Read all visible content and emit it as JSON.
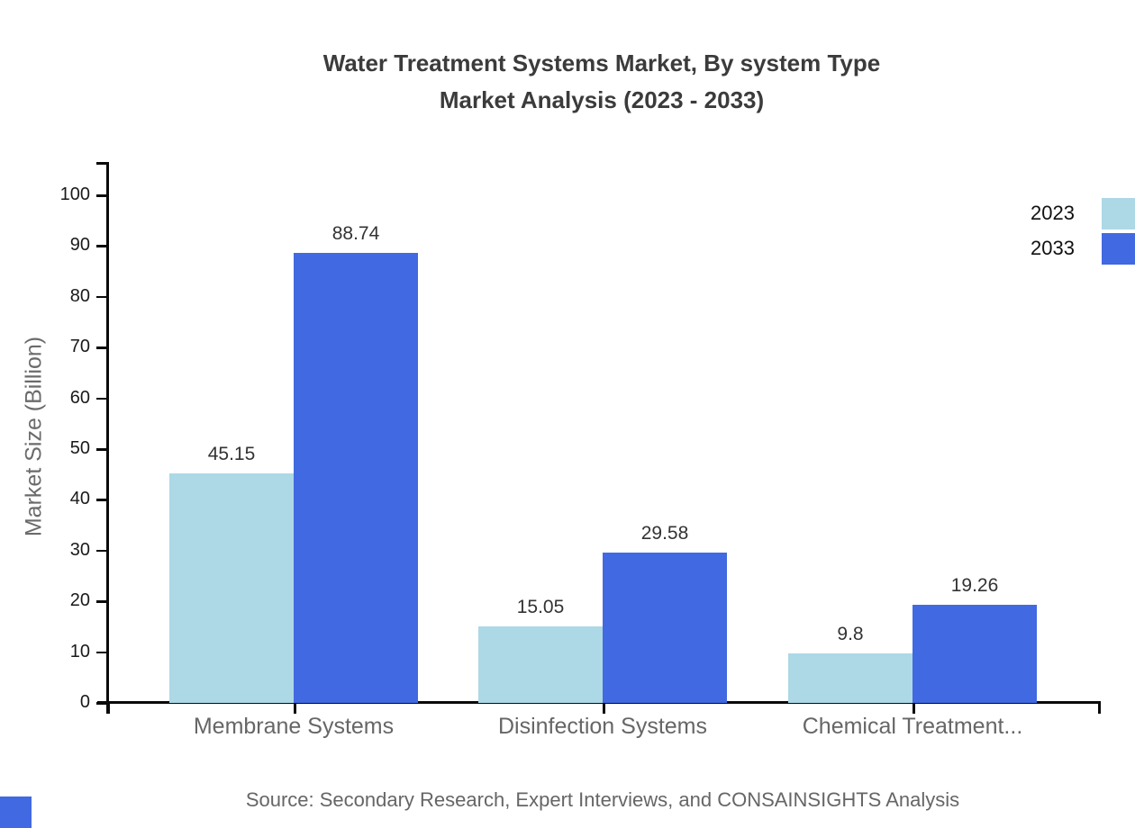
{
  "title": {
    "line1": "Water Treatment Systems Market, By system Type",
    "line2": "Market Analysis (2023 - 2033)"
  },
  "chart_data": {
    "type": "bar",
    "categories": [
      "Membrane Systems",
      "Disinfection Systems",
      "Chemical Treatment..."
    ],
    "series": [
      {
        "name": "2023",
        "color": "#ADD8E6",
        "values": [
          45.15,
          15.05,
          9.8
        ]
      },
      {
        "name": "2033",
        "color": "#4169E1",
        "values": [
          88.74,
          29.58,
          19.26
        ]
      }
    ],
    "value_labels": [
      "45.15",
      "88.74",
      "15.05",
      "29.58",
      "9.8",
      "19.26"
    ],
    "title": "Water Treatment Systems Market, By system Type Market Analysis (2023 - 2033)",
    "xlabel": "",
    "ylabel": "Market Size (Billion)",
    "ylim": [
      0,
      100
    ],
    "yticks": [
      0,
      10,
      20,
      30,
      40,
      50,
      60,
      70,
      80,
      90,
      100
    ],
    "grid": false,
    "legend_position": "top-right"
  },
  "legend": {
    "items": [
      {
        "label": "2023",
        "color": "#ADD8E6"
      },
      {
        "label": "2033",
        "color": "#4169E1"
      }
    ]
  },
  "source": {
    "text": "Source: Secondary Research, Expert Interviews, and CONSAINSIGHTS Analysis"
  },
  "colors": {
    "title_text": "#3b3b3b",
    "axis_line": "#0a0a0a",
    "tick_label": "#1a1a1a",
    "category_label": "#666666",
    "axis_title": "#6b6b6b",
    "value_label": "#333333",
    "source_text": "#666666",
    "series_2023": "#ADD8E6",
    "series_2033": "#4169E1",
    "corner_mark": "#4169E1"
  }
}
